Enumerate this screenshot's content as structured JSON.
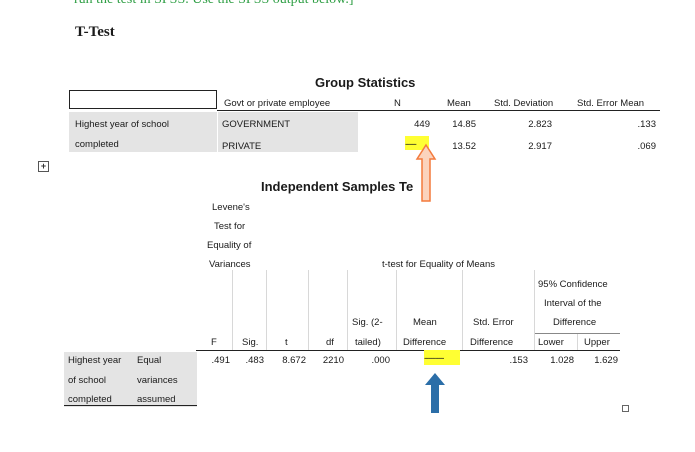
{
  "instruction": "run the test in SPSS. Use the SPSS output below.]",
  "heading": "T-Test",
  "group_stats": {
    "title": "Group Statistics",
    "col_group": "Govt or private employee",
    "col_n": "N",
    "col_mean": "Mean",
    "col_sd": "Std. Deviation",
    "col_sem": "Std. Error Mean",
    "var_line1": "Highest year of school",
    "var_line2": "completed",
    "rows": [
      {
        "group": "GOVERNMENT",
        "n": "449",
        "mean": "14.85",
        "sd": "2.823",
        "sem": ".133"
      },
      {
        "group": "PRIVATE",
        "n": "-----",
        "mean": "13.52",
        "sd": "2.917",
        "sem": ".069"
      }
    ]
  },
  "indep": {
    "title": "Independent Samples Te",
    "levene": [
      "Levene's",
      "Test for",
      "Equality of",
      "Variances"
    ],
    "ttest_header": "t-test for Equality of Means",
    "ci": [
      "95% Confidence",
      "Interval of the",
      "Difference"
    ],
    "cols": {
      "f": "F",
      "sig": "Sig.",
      "t": "t",
      "df": "df",
      "sig2_1": "Sig. (2-",
      "sig2_2": "tailed)",
      "md_1": "Mean",
      "md_2": "Difference",
      "sed_1": "Std. Error",
      "sed_2": "Difference",
      "lower": "Lower",
      "upper": "Upper"
    },
    "var": [
      "Highest year",
      "of school",
      "completed"
    ],
    "assump": [
      "Equal",
      "variances",
      "assumed"
    ],
    "row": {
      "f": ".491",
      "sig": ".483",
      "t": "8.672",
      "df": "2210",
      "sig2": ".000",
      "md": "---------",
      "sed": ".153",
      "lower": "1.028",
      "upper": "1.629"
    }
  },
  "colors": {
    "highlight": "#ffff33",
    "arrow_orange": "#f47a3c",
    "arrow_blue": "#2b6ea8",
    "instruction_text": "#2e9e44"
  },
  "icons": [
    "expand-icon",
    "orange-up-arrow-icon",
    "blue-up-arrow-icon",
    "resize-handle-icon"
  ]
}
